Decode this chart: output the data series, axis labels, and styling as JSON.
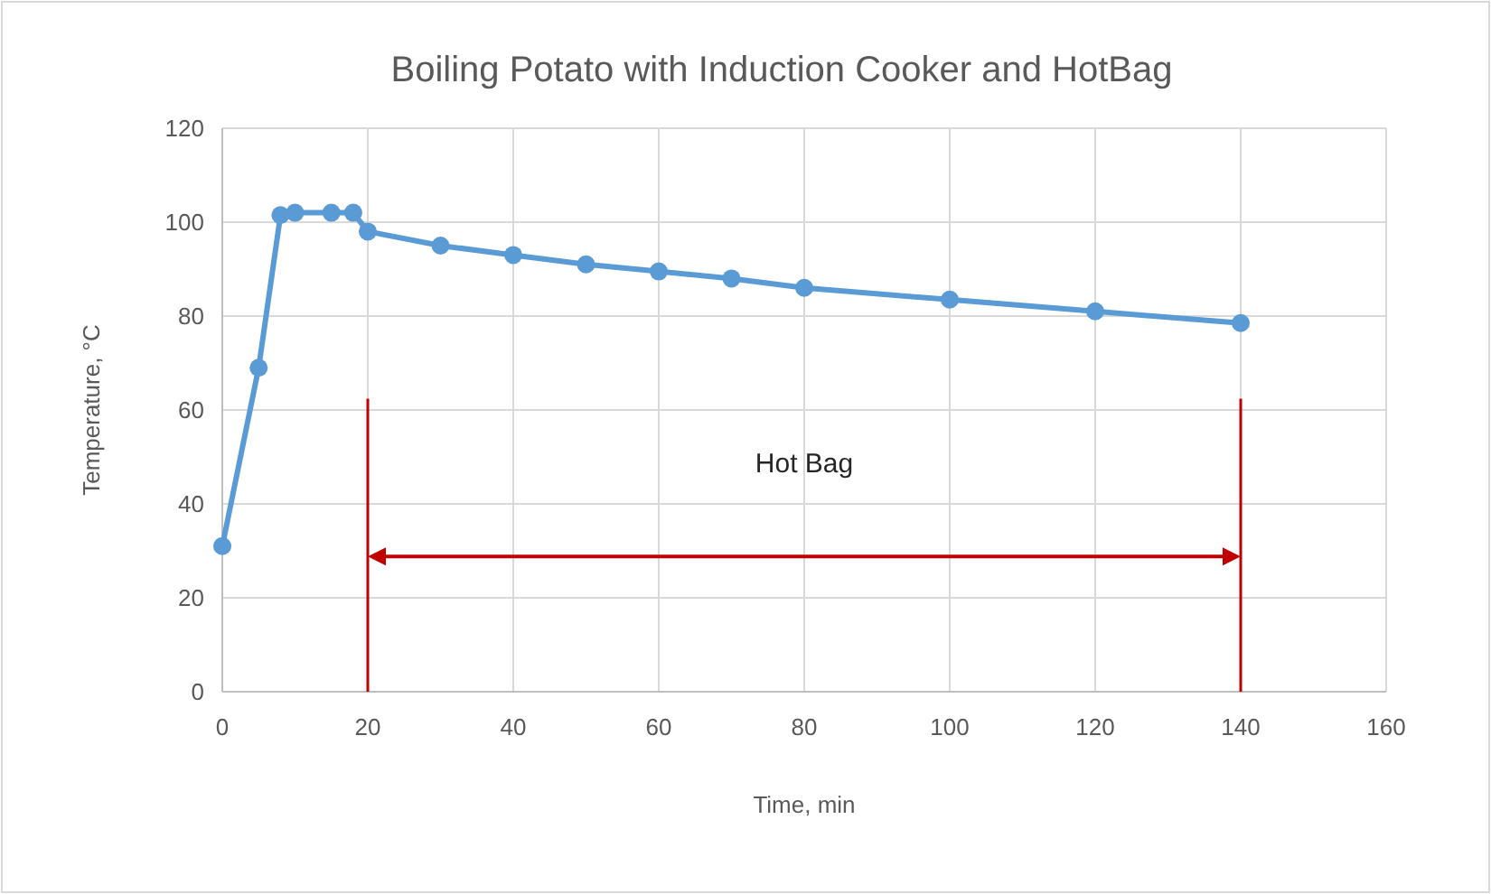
{
  "chart_data": {
    "type": "line",
    "title": "Boiling Potato with Induction Cooker and HotBag",
    "xlabel": "Time, min",
    "ylabel": "Temperature, °C",
    "x": [
      0,
      5,
      8,
      10,
      15,
      18,
      20,
      30,
      40,
      50,
      60,
      70,
      80,
      100,
      120,
      140
    ],
    "series": [
      {
        "color": "#5b9bd5",
        "values": [
          31,
          69,
          101.5,
          102,
          102,
          102,
          98,
          95,
          93,
          91,
          89.5,
          88,
          86,
          83.5,
          81,
          78.5
        ]
      }
    ],
    "xlim": [
      0,
      160
    ],
    "xticks": [
      0,
      20,
      40,
      60,
      80,
      100,
      120,
      140,
      160
    ],
    "ylim": [
      0,
      120
    ],
    "yticks": [
      0,
      20,
      40,
      60,
      80,
      100,
      120
    ],
    "grid": true,
    "marker": "circle",
    "line_style": "solid",
    "ref_lines": [
      {
        "axis": "x",
        "value": 20,
        "color": "#c00000"
      },
      {
        "axis": "x",
        "value": 140,
        "color": "#c00000"
      }
    ],
    "annotations": [
      "Hot Bag"
    ]
  }
}
